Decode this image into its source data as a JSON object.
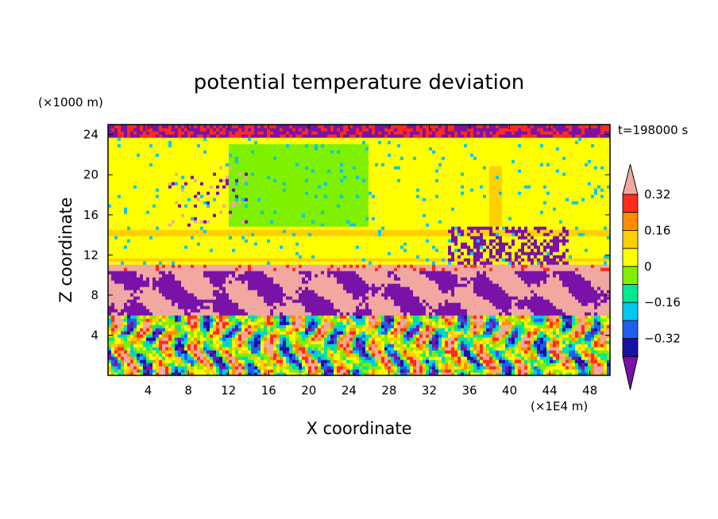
{
  "chart_data": {
    "type": "heatmap",
    "title": "potential temperature deviation",
    "xlabel": "X coordinate",
    "ylabel": "Z coordinate",
    "x_unit": "(×1E4 m)",
    "y_unit": "(×1000 m)",
    "time_label": "t=198000 s",
    "xlim": [
      0,
      50
    ],
    "ylim": [
      0,
      25
    ],
    "x_ticks": [
      4,
      8,
      12,
      16,
      20,
      24,
      28,
      32,
      36,
      40,
      44,
      48
    ],
    "y_ticks": [
      4,
      8,
      12,
      16,
      20,
      24
    ],
    "colorbar": {
      "levels": [
        -0.4,
        -0.32,
        -0.24,
        -0.16,
        -0.08,
        0,
        0.08,
        0.16,
        0.24,
        0.32,
        0.4
      ],
      "labeled_levels": [
        0.32,
        0.16,
        0,
        -0.16,
        -0.32
      ],
      "labels": [
        "0.32",
        "0.16",
        "0",
        "−0.16",
        "−0.32"
      ],
      "colors": [
        "#7a12a8",
        "#1a0fa8",
        "#1f5ff0",
        "#00c8f0",
        "#00e890",
        "#7ef000",
        "#ffff00",
        "#ffd000",
        "#ff8c00",
        "#ff2a1a",
        "#f0a8a0"
      ]
    },
    "regions": [
      {
        "z": [
          0,
          6
        ],
        "description_values": "strongly varying, full color range"
      },
      {
        "z": [
          6,
          10.3
        ],
        "dominant": [
          -0.4,
          0.4
        ]
      },
      {
        "z": [
          10.3,
          11
        ],
        "dominant": [
          0.24,
          0.4
        ]
      },
      {
        "z": [
          11,
          24.5
        ],
        "dominant": [
          0,
          0.08
        ]
      }
    ]
  }
}
